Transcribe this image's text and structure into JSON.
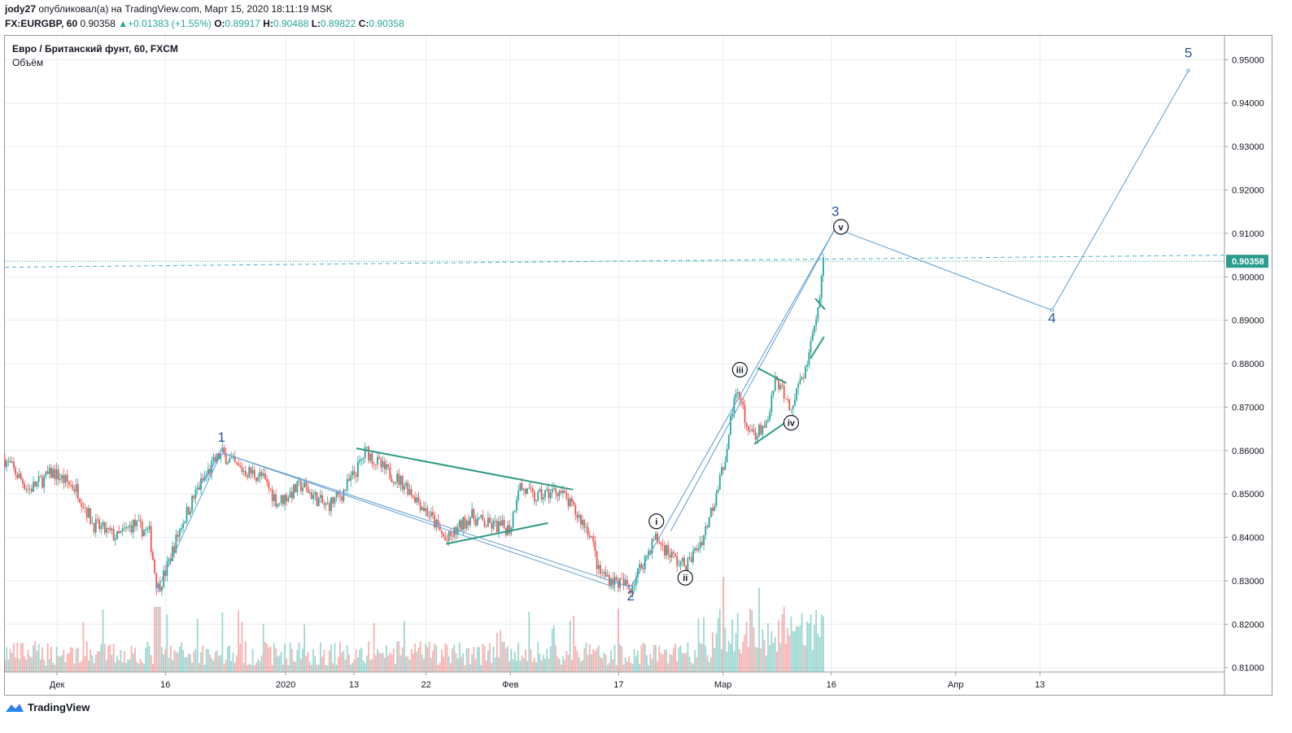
{
  "header": {
    "user": "jody27",
    "published_text": "опубликовал(а) на TradingView.com, Март 15, 2020 18:11:19 MSK",
    "symbol": "FX:EURGBP, 60",
    "last": "0.90358",
    "change": "+0.01383 (+1.55%)",
    "o_label": "O:",
    "o_value": "0.89917",
    "h_label": "H:",
    "h_value": "0.90488",
    "l_label": "L:",
    "l_value": "0.89822",
    "c_label": "C:",
    "c_value": "0.90358"
  },
  "legend": {
    "title": "Евро / Британский фунт, 60, FXCM",
    "volume": "Объём"
  },
  "footer": {
    "brand": "TradingView"
  },
  "colors": {
    "bull": "#26a69a",
    "bear": "#ef5350",
    "wave_line": "#5b9bd5",
    "trend_line": "#2e9c83",
    "price_line": "#2a9d8f",
    "label_color": "#2b5797",
    "grid": "#e9ecf0"
  },
  "chart_data": {
    "type": "candlestick",
    "ylim": [
      0.809,
      0.9555
    ],
    "y_ticks": [
      "0.95000",
      "0.94000",
      "0.93000",
      "0.92000",
      "0.91000",
      "0.90000",
      "0.89000",
      "0.88000",
      "0.87000",
      "0.86000",
      "0.85000",
      "0.84000",
      "0.83000",
      "0.82000",
      "0.81000"
    ],
    "y_tick_values": [
      0.95,
      0.94,
      0.93,
      0.92,
      0.91,
      0.9,
      0.89,
      0.88,
      0.87,
      0.86,
      0.85,
      0.84,
      0.83,
      0.82,
      0.81
    ],
    "x_ticks": [
      {
        "label": "Дек",
        "t": 6.5
      },
      {
        "label": "16",
        "t": 20
      },
      {
        "label": "2020",
        "t": 35
      },
      {
        "label": "13",
        "t": 43.5
      },
      {
        "label": "22",
        "t": 52.5
      },
      {
        "label": "Фев",
        "t": 63
      },
      {
        "label": "17",
        "t": 76.5
      },
      {
        "label": "Мар",
        "t": 89.5
      },
      {
        "label": "16",
        "t": 103
      },
      {
        "label": "Апр",
        "t": 118.5
      },
      {
        "label": "13",
        "t": 129
      }
    ],
    "current_price": {
      "value": 0.90358,
      "label": "0.90358"
    },
    "price_series": [
      [
        0,
        0.858
      ],
      [
        3,
        0.851
      ],
      [
        6,
        0.855
      ],
      [
        9,
        0.851
      ],
      [
        11,
        0.843
      ],
      [
        14,
        0.84
      ],
      [
        16,
        0.843
      ],
      [
        18,
        0.841
      ],
      [
        19,
        0.828
      ],
      [
        20,
        0.832
      ],
      [
        22,
        0.843
      ],
      [
        24,
        0.851
      ],
      [
        26,
        0.857
      ],
      [
        27,
        0.8595
      ],
      [
        29,
        0.856
      ],
      [
        32,
        0.854
      ],
      [
        34,
        0.848
      ],
      [
        37,
        0.852
      ],
      [
        40,
        0.847
      ],
      [
        42,
        0.85
      ],
      [
        44,
        0.856
      ],
      [
        45,
        0.86
      ],
      [
        47,
        0.856
      ],
      [
        50,
        0.852
      ],
      [
        53,
        0.845
      ],
      [
        55,
        0.839
      ],
      [
        58,
        0.845
      ],
      [
        60,
        0.843
      ],
      [
        63,
        0.842
      ],
      [
        64,
        0.852
      ],
      [
        66,
        0.849
      ],
      [
        69,
        0.851
      ],
      [
        71,
        0.846
      ],
      [
        73,
        0.841
      ],
      [
        74,
        0.832
      ],
      [
        76,
        0.83
      ],
      [
        78,
        0.8285
      ],
      [
        80,
        0.836
      ],
      [
        81,
        0.84
      ],
      [
        83,
        0.836
      ],
      [
        84,
        0.834
      ],
      [
        85,
        0.8335
      ],
      [
        87,
        0.84
      ],
      [
        89,
        0.852
      ],
      [
        90,
        0.861
      ],
      [
        91,
        0.874
      ],
      [
        92,
        0.869
      ],
      [
        93,
        0.863
      ],
      [
        95,
        0.866
      ],
      [
        96,
        0.876
      ],
      [
        98,
        0.87
      ],
      [
        100,
        0.88
      ],
      [
        101,
        0.888
      ],
      [
        102,
        0.903
      ]
    ],
    "volume_max": 1.0,
    "channel_line": [
      [
        24,
        0.851
      ],
      [
        27,
        0.8595
      ],
      [
        76,
        0.8285
      ]
    ],
    "waves": {
      "main_path": [
        [
          19,
          0.828
        ],
        [
          27,
          0.8595
        ],
        [
          78,
          0.8285
        ],
        [
          103.5,
          0.9112
        ],
        [
          130.5,
          0.8923
        ],
        [
          147.5,
          0.9475
        ]
      ],
      "upper_line": [
        [
          83,
          0.8415
        ],
        [
          103.5,
          0.9112
        ]
      ],
      "labels": [
        {
          "text": "1",
          "t": 27,
          "y": 0.862
        },
        {
          "text": "2",
          "t": 78,
          "y": 0.8255
        },
        {
          "text": "3",
          "t": 103.5,
          "y": 0.914
        },
        {
          "text": "4",
          "t": 130.5,
          "y": 0.8895
        },
        {
          "text": "5",
          "t": 147.5,
          "y": 0.9505
        }
      ],
      "sub_labels": [
        {
          "text": "i",
          "t": 81.2,
          "y": 0.8437
        },
        {
          "text": "ii",
          "t": 84.8,
          "y": 0.8307
        },
        {
          "text": "iii",
          "t": 91.6,
          "y": 0.8786
        },
        {
          "text": "iv",
          "t": 98,
          "y": 0.8664
        },
        {
          "text": "v",
          "t": 104.2,
          "y": 0.9115
        }
      ]
    },
    "trendlines": [
      [
        [
          43.8,
          0.8605
        ],
        [
          70.8,
          0.851
        ]
      ],
      [
        [
          55,
          0.8385
        ],
        [
          67.7,
          0.8433
        ]
      ],
      [
        [
          93.8,
          0.879
        ],
        [
          97.4,
          0.8755
        ]
      ],
      [
        [
          93.4,
          0.8615
        ],
        [
          97.7,
          0.867
        ]
      ],
      [
        [
          101,
          0.895
        ],
        [
          102.2,
          0.8925
        ]
      ],
      [
        [
          100.4,
          0.8812
        ],
        [
          102.1,
          0.8862
        ]
      ]
    ],
    "dashed_trend": [
      [
        0,
        0.9022
      ],
      [
        180,
        0.9055
      ]
    ]
  }
}
